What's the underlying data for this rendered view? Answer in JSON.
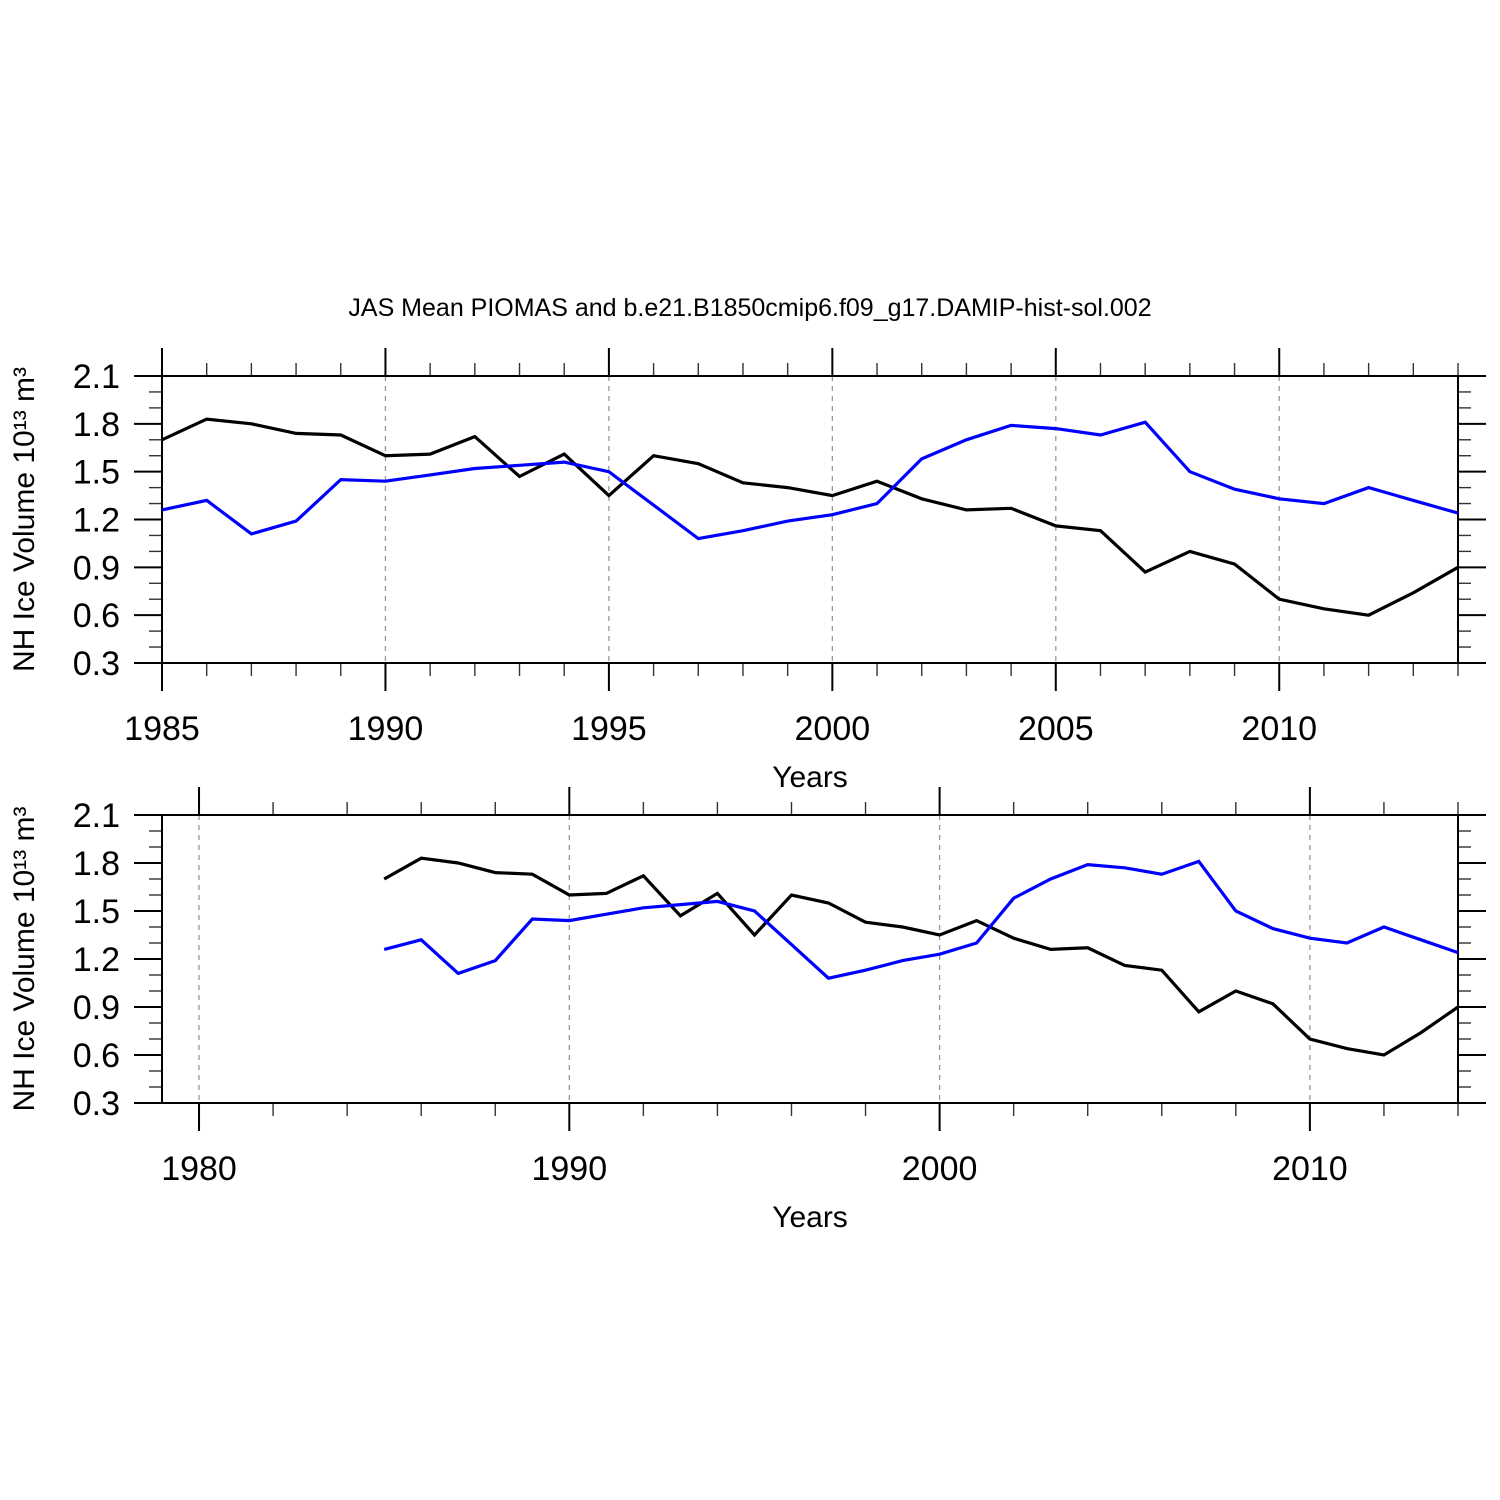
{
  "figure": {
    "title": "JAS Mean PIOMAS and b.e21.B1850cmip6.f09_g17.DAMIP-hist-sol.002",
    "background_color": "#ffffff"
  },
  "chart_data": [
    {
      "type": "line",
      "title": "JAS Mean PIOMAS and b.e21.B1850cmip6.f09_g17.DAMIP-hist-sol.002",
      "xlabel": "Years",
      "ylabel": "NH Ice Volume 10¹³ m³",
      "xlim": [
        1985,
        2014
      ],
      "ylim": [
        0.3,
        2.1
      ],
      "xticks_major": [
        1985,
        1990,
        1995,
        2000,
        2005,
        2010
      ],
      "xtick_labels": [
        "1985",
        "1990",
        "1995",
        "2000",
        "2005",
        "2010"
      ],
      "x_minor_step": 1,
      "yticks_major": [
        0.3,
        0.6,
        0.9,
        1.2,
        1.5,
        1.8,
        2.1
      ],
      "ytick_labels": [
        "0.3",
        "0.6",
        "0.9",
        "1.2",
        "1.5",
        "1.8",
        "2.1"
      ],
      "y_minor_step": 0.1,
      "gridlines_x": [
        1990,
        1995,
        2000,
        2005,
        2010
      ],
      "grid_style": "dashed",
      "legend_position": "none",
      "x": [
        1985,
        1986,
        1987,
        1988,
        1989,
        1990,
        1991,
        1992,
        1993,
        1994,
        1995,
        1996,
        1997,
        1998,
        1999,
        2000,
        2001,
        2002,
        2003,
        2004,
        2005,
        2006,
        2007,
        2008,
        2009,
        2010,
        2011,
        2012,
        2013,
        2014
      ],
      "series": [
        {
          "name": "PIOMAS",
          "color": "#000000",
          "values": [
            1.7,
            1.83,
            1.8,
            1.74,
            1.73,
            1.6,
            1.61,
            1.72,
            1.47,
            1.61,
            1.35,
            1.6,
            1.55,
            1.43,
            1.4,
            1.35,
            1.44,
            1.33,
            1.26,
            1.27,
            1.16,
            1.13,
            0.87,
            1.0,
            0.92,
            0.7,
            0.64,
            0.6,
            0.74,
            0.9
          ]
        },
        {
          "name": "b.e21.B1850cmip6.f09_g17.DAMIP-hist-sol.002",
          "color": "#0000ff",
          "values": [
            1.26,
            1.32,
            1.11,
            1.19,
            1.45,
            1.44,
            1.48,
            1.52,
            1.54,
            1.56,
            1.5,
            1.29,
            1.08,
            1.13,
            1.19,
            1.23,
            1.3,
            1.58,
            1.7,
            1.79,
            1.77,
            1.73,
            1.81,
            1.5,
            1.39,
            1.33,
            1.3,
            1.4,
            1.32,
            1.24
          ]
        }
      ]
    },
    {
      "type": "line",
      "title": "",
      "xlabel": "Years",
      "ylabel": "NH Ice Volume 10¹³ m³",
      "xlim": [
        1979,
        2014
      ],
      "ylim": [
        0.3,
        2.1
      ],
      "xticks_major": [
        1980,
        1990,
        2000,
        2010
      ],
      "xtick_labels": [
        "1980",
        "1990",
        "2000",
        "2010"
      ],
      "x_minor_step": 2,
      "yticks_major": [
        0.3,
        0.6,
        0.9,
        1.2,
        1.5,
        1.8,
        2.1
      ],
      "ytick_labels": [
        "0.3",
        "0.6",
        "0.9",
        "1.2",
        "1.5",
        "1.8",
        "2.1"
      ],
      "y_minor_step": 0.1,
      "gridlines_x": [
        1980,
        1990,
        2000,
        2010
      ],
      "grid_style": "dashed",
      "legend_position": "none",
      "x": [
        1985,
        1986,
        1987,
        1988,
        1989,
        1990,
        1991,
        1992,
        1993,
        1994,
        1995,
        1996,
        1997,
        1998,
        1999,
        2000,
        2001,
        2002,
        2003,
        2004,
        2005,
        2006,
        2007,
        2008,
        2009,
        2010,
        2011,
        2012,
        2013,
        2014
      ],
      "series": [
        {
          "name": "PIOMAS",
          "color": "#000000",
          "values": [
            1.7,
            1.83,
            1.8,
            1.74,
            1.73,
            1.6,
            1.61,
            1.72,
            1.47,
            1.61,
            1.35,
            1.6,
            1.55,
            1.43,
            1.4,
            1.35,
            1.44,
            1.33,
            1.26,
            1.27,
            1.16,
            1.13,
            0.87,
            1.0,
            0.92,
            0.7,
            0.64,
            0.6,
            0.74,
            0.9
          ]
        },
        {
          "name": "b.e21.B1850cmip6.f09_g17.DAMIP-hist-sol.002",
          "color": "#0000ff",
          "values": [
            1.26,
            1.32,
            1.11,
            1.19,
            1.45,
            1.44,
            1.48,
            1.52,
            1.54,
            1.56,
            1.5,
            1.29,
            1.08,
            1.13,
            1.19,
            1.23,
            1.3,
            1.58,
            1.7,
            1.79,
            1.77,
            1.73,
            1.81,
            1.5,
            1.39,
            1.33,
            1.3,
            1.4,
            1.32,
            1.24
          ]
        }
      ]
    }
  ]
}
